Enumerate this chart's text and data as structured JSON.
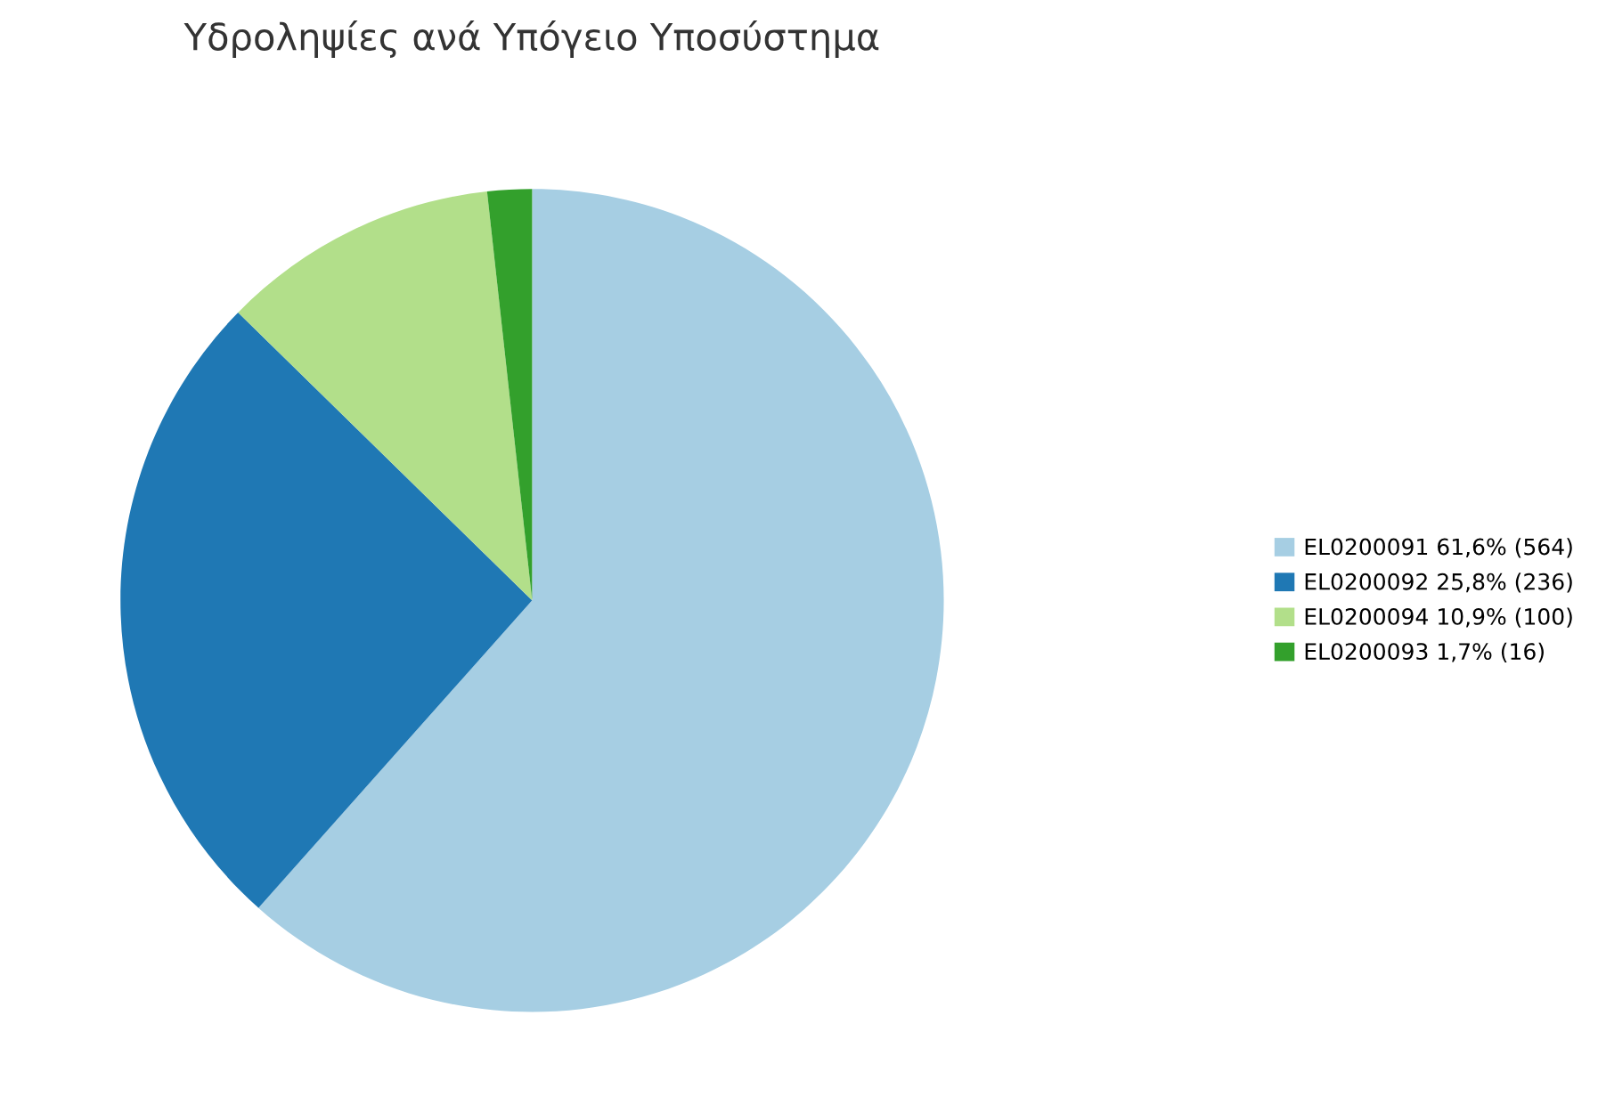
{
  "chart_data": {
    "type": "pie",
    "title": "Υδροληψίες ανά Υπόγειο Υποσύστημα",
    "categories": [
      "EL0200091",
      "EL0200092",
      "EL0200094",
      "EL0200093"
    ],
    "values": [
      564,
      236,
      100,
      16
    ],
    "value_labels": [
      "61,6% (564)",
      "25,8% (236)",
      "10,9% (100)",
      "1,7% (16)"
    ],
    "colors": [
      "#a6cee3",
      "#1f78b4",
      "#b2df8a",
      "#33a02c"
    ],
    "legend": "right"
  }
}
